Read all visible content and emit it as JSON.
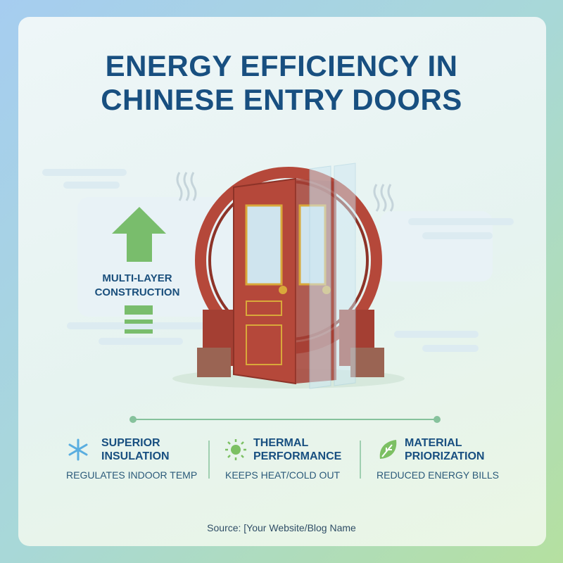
{
  "title": {
    "line1": "ENERGY EFFICIENCY IN",
    "line2": "CHINESE ENTRY DOORS"
  },
  "illustration": {
    "label_line1": "MULTI-LAYER",
    "label_line2": "CONSTRUCTION",
    "arrow_icon": "arrow-up-icon",
    "layers_icon": "layers-icon"
  },
  "features": [
    {
      "icon": "snowflake-icon",
      "title1": "SUPERIOR",
      "title2": "INSULATION",
      "subtitle": "REGULATES INDOOR TEMP",
      "color": "#5aaee0"
    },
    {
      "icon": "sun-icon",
      "title1": "THERMAL",
      "title2": "PERFORMANCE",
      "subtitle": "KEEPS HEAT/COLD OUT",
      "color": "#7cc063"
    },
    {
      "icon": "leaf-icon",
      "title1": "MATERIAL",
      "title2": "PRIORIZATION",
      "subtitle": "REDUCED ENERGY BILLS",
      "color": "#7cc063"
    }
  ],
  "source": "Source: [Your Website/Blog Name",
  "colors": {
    "title": "#184f80",
    "door": "#b5483a",
    "accent_green": "#7cc063"
  }
}
